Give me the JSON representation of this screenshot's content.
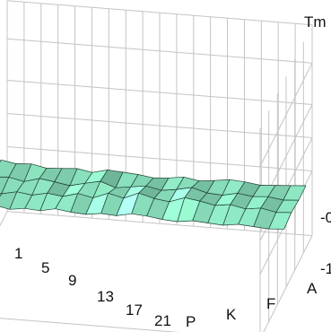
{
  "chart_data": {
    "type": "surface",
    "title": "",
    "zlabel": "Tm",
    "x_ticks": [
      "1",
      "5",
      "9",
      "13",
      "17",
      "21"
    ],
    "y_ticks": [
      "P",
      "K",
      "F",
      "A"
    ],
    "z_ticks": [
      "-0",
      "-1"
    ],
    "x": [
      1,
      2,
      3,
      4,
      5,
      6,
      7,
      8,
      9,
      10,
      11,
      12,
      13,
      14,
      15,
      16,
      17,
      18,
      19,
      20,
      21
    ],
    "y": [
      "P",
      "K",
      "F",
      "A"
    ],
    "z": [
      [
        0.15,
        0.1,
        0.12,
        0.06,
        0.08,
        0.1,
        0.05,
        0.12,
        0.1,
        0.08,
        0.04,
        0.06,
        0.1,
        0.05,
        0.08,
        0.12,
        0.1,
        0.06,
        0.08,
        0.1,
        0.12
      ],
      [
        0.1,
        0.12,
        0.06,
        0.14,
        0.1,
        0.05,
        0.12,
        0.18,
        0.08,
        0.12,
        0.16,
        0.1,
        0.14,
        0.2,
        0.12,
        0.1,
        0.16,
        0.12,
        0.14,
        0.1,
        0.12
      ],
      [
        0.12,
        0.08,
        0.14,
        0.1,
        0.16,
        0.12,
        0.2,
        0.14,
        0.25,
        0.18,
        0.3,
        0.22,
        0.18,
        0.28,
        0.24,
        0.18,
        0.22,
        0.16,
        0.2,
        0.14,
        0.16
      ],
      [
        0.1,
        0.14,
        0.08,
        0.12,
        0.1,
        0.16,
        0.12,
        0.1,
        0.14,
        0.12,
        0.18,
        0.16,
        0.12,
        0.1,
        0.14,
        0.12,
        0.1,
        0.14,
        0.12,
        0.1,
        0.12
      ]
    ],
    "xlim": [
      1,
      21
    ],
    "zlim": [
      -1,
      1
    ],
    "grid": true,
    "colors": {
      "surface": "#7fcfae",
      "edge": "#1f3f33",
      "grid": "#c4c4c4"
    }
  }
}
